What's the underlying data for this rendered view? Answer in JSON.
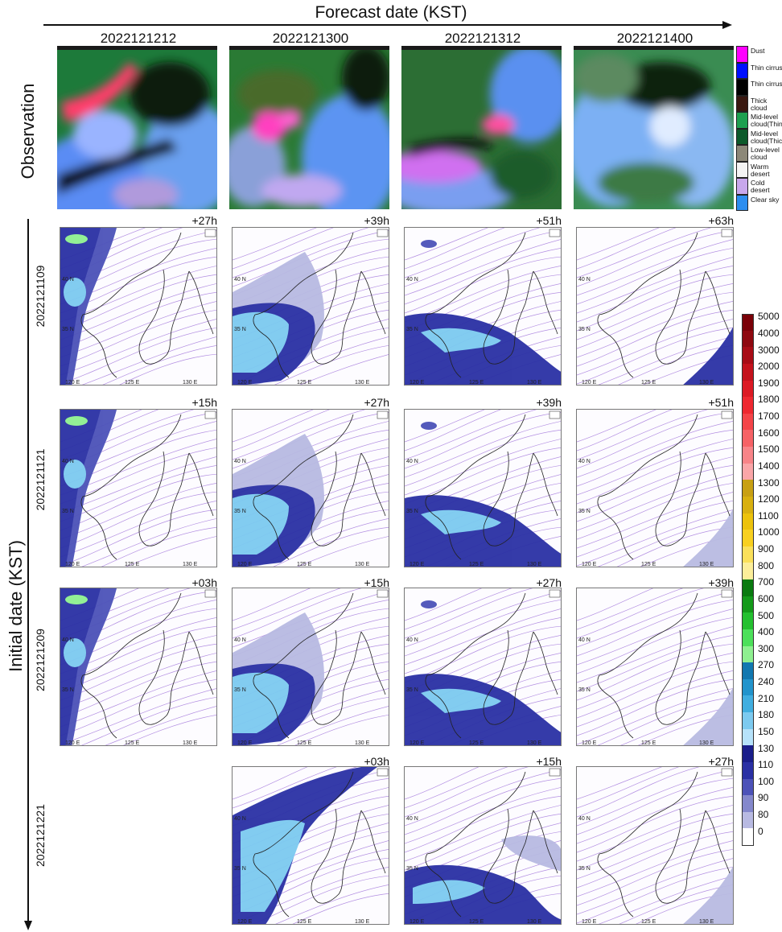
{
  "header": {
    "forecast_title": "Forecast date (KST)",
    "forecast_dates": [
      "2022121212",
      "2022121300",
      "2022121312",
      "2022121400"
    ]
  },
  "rows": {
    "observation_label": "Observation",
    "initial_title": "Initial date (KST)",
    "initial_dates": [
      "2022121109",
      "2022121121",
      "2022121209",
      "2022121221"
    ]
  },
  "lead_times": [
    [
      "+27h",
      "+39h",
      "+51h",
      "+63h"
    ],
    [
      "+15h",
      "+27h",
      "+39h",
      "+51h"
    ],
    [
      "+03h",
      "+15h",
      "+27h",
      "+39h"
    ],
    [
      "",
      "+03h",
      "+15h",
      "+27h"
    ]
  ],
  "map_ticks": {
    "lat": [
      "40 N",
      "35 N"
    ],
    "lon": [
      "120 E",
      "125 E",
      "130 E"
    ]
  },
  "rgb_legend": [
    {
      "label": "Dust",
      "color": "#ff00ff"
    },
    {
      "label": "Thin cirrus",
      "color": "#0010ff"
    },
    {
      "label": "Thin cirrus",
      "color": "#000000"
    },
    {
      "label": "Thick cloud",
      "color": "#3a1810"
    },
    {
      "label": "Mid-level cloud(Thin)",
      "color": "#1ea050"
    },
    {
      "label": "Mid-level cloud(Thick",
      "color": "#0c5a2a"
    },
    {
      "label": "Low-level cloud",
      "color": "#8c8878"
    },
    {
      "label": "Warm desert",
      "color": "#f4f4f4"
    },
    {
      "label": "Cold desert",
      "color": "#c8a8ec"
    },
    {
      "label": "Clear sky",
      "color": "#2c8ef0"
    }
  ],
  "colorbar": [
    {
      "label": "5000",
      "color": "#7a0008"
    },
    {
      "label": "4000",
      "color": "#8e0810"
    },
    {
      "label": "3000",
      "color": "#a80c16"
    },
    {
      "label": "2000",
      "color": "#c4121c"
    },
    {
      "label": "1900",
      "color": "#dc1a24"
    },
    {
      "label": "1800",
      "color": "#ee2830"
    },
    {
      "label": "1700",
      "color": "#f44448"
    },
    {
      "label": "1600",
      "color": "#f66266"
    },
    {
      "label": "1500",
      "color": "#f88488"
    },
    {
      "label": "1400",
      "color": "#faa6a8"
    },
    {
      "label": "1300",
      "color": "#c8a014"
    },
    {
      "label": "1200",
      "color": "#d8b010"
    },
    {
      "label": "1100",
      "color": "#ecc20c"
    },
    {
      "label": "1000",
      "color": "#f8d020"
    },
    {
      "label": "900",
      "color": "#fae05a"
    },
    {
      "label": "800",
      "color": "#fcee9a"
    },
    {
      "label": "700",
      "color": "#0a7a10"
    },
    {
      "label": "600",
      "color": "#149a1a"
    },
    {
      "label": "500",
      "color": "#24c030"
    },
    {
      "label": "400",
      "color": "#4ce05a"
    },
    {
      "label": "300",
      "color": "#8ef090"
    },
    {
      "label": "270",
      "color": "#1278b0"
    },
    {
      "label": "240",
      "color": "#2294cc"
    },
    {
      "label": "210",
      "color": "#40aee0"
    },
    {
      "label": "180",
      "color": "#7ccaf0"
    },
    {
      "label": "150",
      "color": "#b6e2fa"
    },
    {
      "label": "130",
      "color": "#1a1e8a"
    },
    {
      "label": "110",
      "color": "#2a30a4"
    },
    {
      "label": "100",
      "color": "#4c52b8"
    },
    {
      "label": "90",
      "color": "#8488cc"
    },
    {
      "label": "80",
      "color": "#b8bae2"
    },
    {
      "label": "0",
      "color": "#ffffff"
    }
  ]
}
